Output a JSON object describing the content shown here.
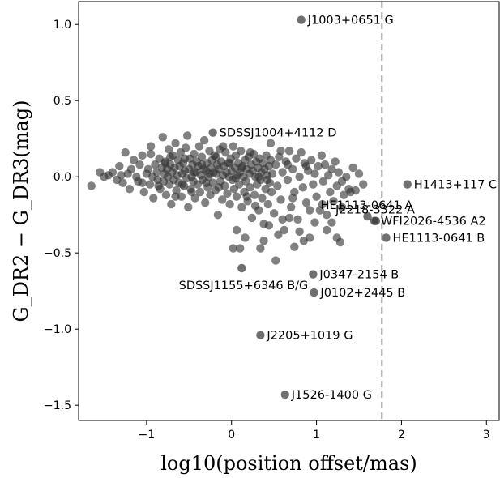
{
  "chart_data": {
    "type": "scatter",
    "title": "",
    "xlabel": "log10(position offset/mas)",
    "ylabel": "G_DR2 − G_DR3(mag)",
    "xlim": [
      -1.8,
      3.15
    ],
    "ylim": [
      -1.6,
      1.15
    ],
    "x_ticks": [
      -1,
      0,
      1,
      2,
      3
    ],
    "y_ticks": [
      -1.5,
      -1.0,
      -0.5,
      0.0,
      0.5,
      1.0
    ],
    "x_tick_labels": [
      "−1",
      "0",
      "1",
      "2",
      "3"
    ],
    "y_tick_labels": [
      "−1.5",
      "−1.0",
      "−0.5",
      "0.0",
      "0.5",
      "1.0"
    ],
    "threshold_line": {
      "x": 1.77,
      "style": "dashed",
      "color": "#999999"
    },
    "marker_color": "#333333",
    "grid": false,
    "labeled_points": [
      {
        "x": 0.82,
        "y": 1.03,
        "label": "J1003+0651 G",
        "anchor": "right"
      },
      {
        "x": -0.22,
        "y": 0.29,
        "label": "SDSSJ1004+4112 D",
        "anchor": "right"
      },
      {
        "x": 2.07,
        "y": -0.05,
        "label": "H1413+117 C",
        "anchor": "right"
      },
      {
        "x": 1.6,
        "y": -0.26,
        "label": "HE1113-0641 A",
        "anchor": "above"
      },
      {
        "x": 1.7,
        "y": -0.29,
        "label": "J2218-3322 A",
        "anchor": "above"
      },
      {
        "x": 1.68,
        "y": -0.29,
        "label": "WFI2026-4536 A2",
        "anchor": "right"
      },
      {
        "x": 1.82,
        "y": -0.4,
        "label": "HE1113-0641 B",
        "anchor": "right"
      },
      {
        "x": 0.12,
        "y": -0.6,
        "label": "SDSSJ1155+6346 B/G",
        "anchor": "below-left"
      },
      {
        "x": 0.96,
        "y": -0.64,
        "label": "J0347-2154 B",
        "anchor": "right"
      },
      {
        "x": 0.97,
        "y": -0.76,
        "label": "J0102+2445 B",
        "anchor": "right"
      },
      {
        "x": 0.34,
        "y": -1.04,
        "label": "J2205+1019 G",
        "anchor": "right"
      },
      {
        "x": 0.63,
        "y": -1.43,
        "label": "J1526-1400 G",
        "anchor": "right"
      }
    ],
    "points": [
      [
        -1.65,
        -0.06
      ],
      [
        -1.55,
        0.03
      ],
      [
        -1.5,
        0.0
      ],
      [
        -1.45,
        0.01
      ],
      [
        -1.4,
        0.03
      ],
      [
        -1.35,
        -0.02
      ],
      [
        -1.32,
        0.07
      ],
      [
        -1.3,
        0.01
      ],
      [
        -1.28,
        -0.04
      ],
      [
        -1.25,
        0.16
      ],
      [
        -1.22,
        0.02
      ],
      [
        -1.2,
        -0.08
      ],
      [
        -1.18,
        0.05
      ],
      [
        -1.15,
        0.11
      ],
      [
        -1.12,
        0.0
      ],
      [
        -1.1,
        -0.03
      ],
      [
        -1.08,
        0.08
      ],
      [
        -1.05,
        0.14
      ],
      [
        -1.03,
        -0.1
      ],
      [
        -1.0,
        0.02
      ],
      [
        -0.98,
        0.05
      ],
      [
        -0.96,
        -0.05
      ],
      [
        -0.95,
        0.15
      ],
      [
        -0.93,
        0.0
      ],
      [
        -0.92,
        -0.14
      ],
      [
        -0.9,
        0.08
      ],
      [
        -0.88,
        0.03
      ],
      [
        -0.87,
        -0.02
      ],
      [
        -0.85,
        0.12
      ],
      [
        -0.84,
        -0.08
      ],
      [
        -0.82,
        0.06
      ],
      [
        -0.81,
        0.26
      ],
      [
        -0.8,
        -0.03
      ],
      [
        -0.79,
        0.02
      ],
      [
        -0.78,
        0.1
      ],
      [
        -0.77,
        -0.12
      ],
      [
        -0.76,
        0.05
      ],
      [
        -0.75,
        0.0
      ],
      [
        -0.74,
        0.18
      ],
      [
        -0.73,
        -0.05
      ],
      [
        -0.72,
        0.08
      ],
      [
        -0.71,
        -0.18
      ],
      [
        -0.7,
        0.03
      ],
      [
        -0.69,
        0.14
      ],
      [
        -0.68,
        -0.02
      ],
      [
        -0.67,
        0.06
      ],
      [
        -0.66,
        0.22
      ],
      [
        -0.65,
        -0.09
      ],
      [
        -0.64,
        0.01
      ],
      [
        -0.63,
        0.11
      ],
      [
        -0.62,
        -0.04
      ],
      [
        -0.61,
        0.07
      ],
      [
        -0.6,
        0.16
      ],
      [
        -0.59,
        -0.13
      ],
      [
        -0.58,
        0.02
      ],
      [
        -0.57,
        0.09
      ],
      [
        -0.56,
        -0.06
      ],
      [
        -0.55,
        0.04
      ],
      [
        -0.54,
        0.19
      ],
      [
        -0.53,
        -0.01
      ],
      [
        -0.52,
        0.27
      ],
      [
        -0.51,
        -0.2
      ],
      [
        -0.5,
        0.05
      ],
      [
        -0.49,
        0.12
      ],
      [
        -0.48,
        -0.08
      ],
      [
        -0.47,
        0.0
      ],
      [
        -0.46,
        0.08
      ],
      [
        -0.45,
        -0.03
      ],
      [
        -0.44,
        0.15
      ],
      [
        -0.43,
        -0.14
      ],
      [
        -0.42,
        0.03
      ],
      [
        -0.41,
        0.1
      ],
      [
        -0.4,
        -0.05
      ],
      [
        -0.39,
        0.07
      ],
      [
        -0.38,
        0.2
      ],
      [
        -0.37,
        -0.1
      ],
      [
        -0.36,
        0.01
      ],
      [
        -0.35,
        0.13
      ],
      [
        -0.34,
        -0.02
      ],
      [
        -0.33,
        0.05
      ],
      [
        -0.32,
        0.24
      ],
      [
        -0.31,
        -0.17
      ],
      [
        -0.3,
        0.04
      ],
      [
        -0.29,
        0.09
      ],
      [
        -0.28,
        -0.07
      ],
      [
        -0.27,
        0.0
      ],
      [
        -0.26,
        0.17
      ],
      [
        -0.25,
        -0.12
      ],
      [
        -0.24,
        0.06
      ],
      [
        -0.23,
        0.11
      ],
      [
        -0.22,
        -0.04
      ],
      [
        -0.21,
        0.03
      ],
      [
        -0.2,
        0.14
      ],
      [
        -0.19,
        -0.09
      ],
      [
        -0.18,
        0.02
      ],
      [
        -0.17,
        0.08
      ],
      [
        -0.16,
        -0.25
      ],
      [
        -0.15,
        0.05
      ],
      [
        -0.14,
        0.18
      ],
      [
        -0.13,
        -0.03
      ],
      [
        -0.12,
        0.1
      ],
      [
        -0.11,
        -0.15
      ],
      [
        -0.1,
        0.01
      ],
      [
        -0.09,
        0.07
      ],
      [
        -0.08,
        -0.06
      ],
      [
        -0.07,
        0.16
      ],
      [
        -0.06,
        0.03
      ],
      [
        -0.05,
        -0.11
      ],
      [
        -0.04,
        0.09
      ],
      [
        -0.03,
        0.0
      ],
      [
        -0.02,
        -0.18
      ],
      [
        -0.01,
        0.12
      ],
      [
        0.0,
        0.04
      ],
      [
        0.01,
        -0.02
      ],
      [
        0.02,
        0.2
      ],
      [
        0.03,
        -0.08
      ],
      [
        0.04,
        0.06
      ],
      [
        0.05,
        0.14
      ],
      [
        0.06,
        -0.13
      ],
      [
        0.07,
        0.01
      ],
      [
        0.08,
        0.09
      ],
      [
        0.09,
        -0.05
      ],
      [
        0.1,
        0.03
      ],
      [
        0.11,
        0.17
      ],
      [
        0.12,
        -0.2
      ],
      [
        0.13,
        0.07
      ],
      [
        0.14,
        0.0
      ],
      [
        0.15,
        -0.1
      ],
      [
        0.16,
        0.11
      ],
      [
        0.17,
        -0.03
      ],
      [
        0.18,
        0.05
      ],
      [
        0.19,
        -0.16
      ],
      [
        0.2,
        0.13
      ],
      [
        0.21,
        0.02
      ],
      [
        0.22,
        -0.07
      ],
      [
        0.23,
        0.08
      ],
      [
        0.24,
        -0.27
      ],
      [
        0.25,
        0.04
      ],
      [
        0.26,
        0.15
      ],
      [
        0.27,
        -0.12
      ],
      [
        0.28,
        0.0
      ],
      [
        0.29,
        0.1
      ],
      [
        0.3,
        -0.05
      ],
      [
        0.31,
        0.06
      ],
      [
        0.32,
        -0.22
      ],
      [
        0.33,
        0.12
      ],
      [
        0.34,
        -0.02
      ],
      [
        0.35,
        0.03
      ],
      [
        0.36,
        -0.14
      ],
      [
        0.37,
        0.09
      ],
      [
        0.38,
        -0.31
      ],
      [
        0.39,
        0.05
      ],
      [
        0.4,
        -0.08
      ],
      [
        0.41,
        0.14
      ],
      [
        0.42,
        0.01
      ],
      [
        0.43,
        -0.18
      ],
      [
        0.44,
        0.07
      ],
      [
        0.45,
        -0.04
      ],
      [
        0.46,
        0.11
      ],
      [
        0.47,
        -0.1
      ],
      [
        0.48,
        0.02
      ],
      [
        0.5,
        -0.24
      ],
      [
        0.52,
        0.08
      ],
      [
        0.54,
        -0.06
      ],
      [
        0.56,
        0.13
      ],
      [
        0.58,
        -0.15
      ],
      [
        0.6,
        0.03
      ],
      [
        0.62,
        -0.35
      ],
      [
        0.64,
        0.1
      ],
      [
        0.66,
        -0.02
      ],
      [
        0.68,
        0.17
      ],
      [
        0.7,
        -0.2
      ],
      [
        0.72,
        0.05
      ],
      [
        0.74,
        -0.1
      ],
      [
        0.76,
        0.12
      ],
      [
        0.78,
        -0.28
      ],
      [
        0.8,
        0.0
      ],
      [
        0.82,
        0.16
      ],
      [
        0.84,
        -0.07
      ],
      [
        0.86,
        0.09
      ],
      [
        0.88,
        -0.17
      ],
      [
        0.9,
        0.04
      ],
      [
        0.92,
        -0.4
      ],
      [
        0.94,
        0.11
      ],
      [
        0.96,
        -0.05
      ],
      [
        0.98,
        0.02
      ],
      [
        1.0,
        -0.13
      ],
      [
        1.02,
        0.07
      ],
      [
        1.04,
        -0.22
      ],
      [
        1.06,
        0.14
      ],
      [
        1.08,
        -0.03
      ],
      [
        1.1,
        0.08
      ],
      [
        1.12,
        -0.25
      ],
      [
        1.14,
        0.01
      ],
      [
        1.16,
        -0.1
      ],
      [
        1.18,
        0.05
      ],
      [
        1.2,
        -0.16
      ],
      [
        1.22,
        0.1
      ],
      [
        1.24,
        -0.06
      ],
      [
        1.26,
        0.03
      ],
      [
        1.28,
        -0.43
      ],
      [
        1.3,
        -0.03
      ],
      [
        1.32,
        -0.12
      ],
      [
        1.35,
        0.0
      ],
      [
        1.38,
        -0.08
      ],
      [
        1.4,
        -0.1
      ],
      [
        1.43,
        0.06
      ],
      [
        1.46,
        -0.09
      ],
      [
        1.5,
        0.02
      ],
      [
        1.55,
        -0.05
      ],
      [
        -0.95,
        0.2
      ],
      [
        -0.58,
        -0.05
      ],
      [
        -0.35,
        0.08
      ],
      [
        -0.18,
        0.13
      ],
      [
        0.05,
        -0.01
      ],
      [
        0.22,
        0.16
      ],
      [
        0.46,
        0.22
      ],
      [
        0.66,
        0.08
      ],
      [
        -0.66,
        -0.13
      ],
      [
        -0.44,
        0.03
      ],
      [
        -0.1,
        0.2
      ],
      [
        0.32,
        0.0
      ],
      [
        -0.78,
        0.09
      ],
      [
        -0.55,
        0.12
      ],
      [
        -0.26,
        0.02
      ],
      [
        0.12,
        0.06
      ],
      [
        -1.05,
        -0.04
      ],
      [
        -0.86,
        -0.06
      ],
      [
        -0.47,
        -0.1
      ],
      [
        -0.15,
        -0.07
      ],
      [
        0.18,
        -0.13
      ],
      [
        0.42,
        -0.02
      ],
      [
        0.58,
        0.17
      ],
      [
        0.72,
        -0.14
      ],
      [
        0.88,
        0.07
      ],
      [
        1.07,
        -0.18
      ],
      [
        -0.3,
        -0.04
      ],
      [
        -0.02,
        0.09
      ],
      [
        0.28,
        -0.19
      ],
      [
        -0.72,
        0.13
      ],
      [
        0.1,
        -0.47
      ],
      [
        0.02,
        -0.47
      ],
      [
        0.34,
        -0.47
      ],
      [
        0.06,
        -0.35
      ],
      [
        0.16,
        -0.4
      ],
      [
        0.55,
        -0.38
      ],
      [
        0.6,
        -0.28
      ],
      [
        0.44,
        -0.32
      ],
      [
        0.74,
        -0.46
      ],
      [
        0.52,
        -0.55
      ],
      [
        0.68,
        -0.27
      ],
      [
        0.8,
        -0.36
      ],
      [
        0.38,
        -0.42
      ],
      [
        1.24,
        -0.4
      ],
      [
        1.18,
        -0.3
      ],
      [
        1.3,
        -0.2
      ],
      [
        0.98,
        -0.3
      ],
      [
        0.85,
        -0.42
      ],
      [
        0.92,
        -0.22
      ],
      [
        1.12,
        -0.35
      ]
    ]
  }
}
